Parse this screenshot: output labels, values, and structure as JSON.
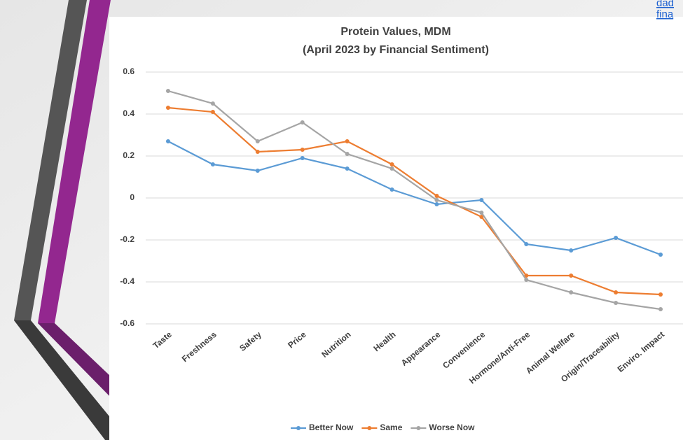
{
  "corner_link_lines": [
    "dad",
    "fina"
  ],
  "chart_data": {
    "type": "line",
    "title": "Protein Values, MDM",
    "subtitle": "(April 2023 by Financial Sentiment)",
    "categories": [
      "Taste",
      "Freshness",
      "Safety",
      "Price",
      "Nutrition",
      "Health",
      "Appearance",
      "Convenience",
      "Hormone/Anti-Free",
      "Animal Welfare",
      "Origin/Traceability",
      "Enviro. Impact"
    ],
    "series": [
      {
        "name": "Better Now",
        "color": "#5b9bd5",
        "values": [
          0.27,
          0.16,
          0.13,
          0.19,
          0.14,
          0.04,
          -0.03,
          -0.01,
          -0.22,
          -0.25,
          -0.19,
          -0.27
        ]
      },
      {
        "name": "Same",
        "color": "#ed7d31",
        "values": [
          0.43,
          0.41,
          0.22,
          0.23,
          0.27,
          0.16,
          0.01,
          -0.09,
          -0.37,
          -0.37,
          -0.45,
          -0.46
        ]
      },
      {
        "name": "Worse Now",
        "color": "#a5a5a5",
        "values": [
          0.51,
          0.45,
          0.27,
          0.36,
          0.21,
          0.14,
          -0.01,
          -0.07,
          -0.39,
          -0.45,
          -0.5,
          -0.53
        ]
      }
    ],
    "ylim": [
      -0.6,
      0.6
    ],
    "yticks": [
      0.6,
      0.4,
      0.2,
      0,
      -0.2,
      -0.4,
      -0.6
    ],
    "grid": true,
    "legend": "bottom"
  }
}
